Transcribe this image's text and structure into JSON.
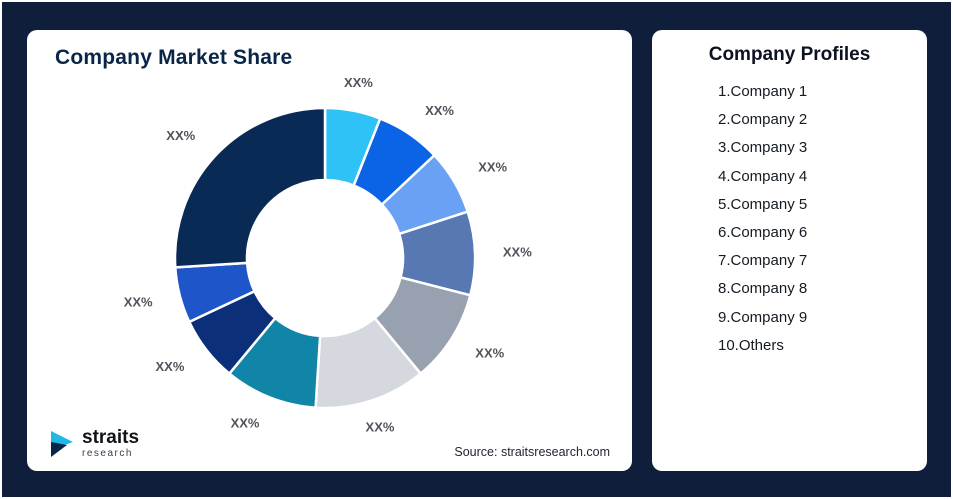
{
  "page": {
    "background_color": "#0F1E3A",
    "card_color": "#FFFFFF"
  },
  "chart_card": {
    "title": "Company Market Share",
    "source": "Source: straitsresearch.com",
    "logo": {
      "name": "straits",
      "sub": "research",
      "icon": "play-arrow-icon",
      "icon_colors": [
        "#20B9E6",
        "#0A2647"
      ]
    }
  },
  "profiles_card": {
    "title": "Company Profiles",
    "items": [
      "1.Company 1",
      "2.Company 2",
      "3.Company 3",
      "4.Company 4",
      "5.Company 5",
      "6.Company 6",
      "7.Company 7",
      "8.Company 8",
      "9.Company 9",
      "10.Others"
    ]
  },
  "chart_data": {
    "type": "pie",
    "subtype": "donut",
    "title": "Company Market Share",
    "categories": [
      "Company 1",
      "Company 2",
      "Company 3",
      "Company 4",
      "Company 5",
      "Company 6",
      "Company 7",
      "Company 8",
      "Company 9",
      "Others"
    ],
    "values": [
      6,
      7,
      7,
      9,
      10,
      12,
      10,
      7,
      6,
      26
    ],
    "labels": [
      "XX%",
      "XX%",
      "XX%",
      "XX%",
      "XX%",
      "XX%",
      "XX%",
      "XX%",
      "XX%",
      "XX%"
    ],
    "colors": [
      "#2FC2F6",
      "#0B63E5",
      "#69A1F4",
      "#5878B4",
      "#98A1B0",
      "#D5D8DE",
      "#1185A8",
      "#0C2F7A",
      "#1E56C9",
      "#0A2A56"
    ],
    "label_color": "#52525b",
    "start_angle_deg": -90,
    "direction": "clockwise",
    "inner_radius_ratio": 0.52,
    "legend_position": "none",
    "grid": false
  }
}
